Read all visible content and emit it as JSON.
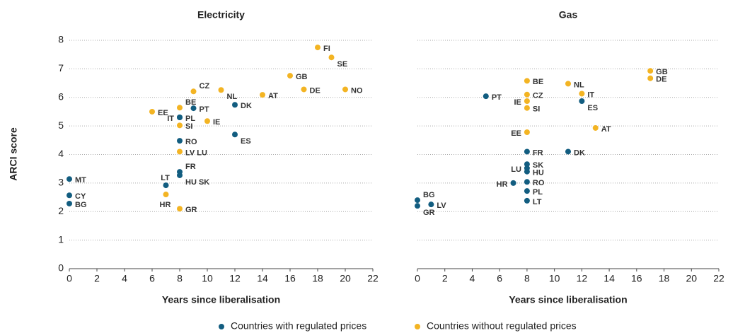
{
  "y_label": "ARCI score",
  "legend": [
    {
      "name": "Countries with regulated prices",
      "color": "#125d80"
    },
    {
      "name": "Countries without regulated prices",
      "color": "#f3b423"
    }
  ],
  "chart_data": [
    {
      "type": "scatter",
      "title": "Electricity",
      "x_label": "Years since liberalisation",
      "xlim": [
        0,
        22
      ],
      "xticks": [
        0,
        2,
        4,
        6,
        8,
        10,
        12,
        14,
        16,
        18,
        20,
        22
      ],
      "ylim": [
        0,
        8
      ],
      "yticks": [
        0,
        1,
        2,
        3,
        4,
        5,
        6,
        7,
        8
      ],
      "ytick_labels": true,
      "grid": true,
      "series": [
        {
          "color": "#125d80",
          "labels": [
            "MT",
            "CY",
            "BG",
            "LT",
            "FR",
            "HU SK",
            "RO",
            "IT",
            "PL",
            "PT",
            "DK",
            "ES"
          ],
          "x": [
            0,
            0,
            0,
            7,
            8,
            8,
            8,
            8,
            8,
            9,
            12,
            12
          ],
          "values": [
            3.14,
            2.57,
            2.28,
            2.92,
            3.39,
            3.27,
            4.48,
            5.3,
            5.3,
            5.62,
            5.74,
            4.7
          ]
        },
        {
          "color": "#f3b423",
          "labels": [
            "EE",
            "BE",
            "SI",
            "CZ",
            "NL",
            "AT",
            "IE",
            "GB",
            "DE",
            "NO",
            "FI",
            "SE",
            "HR",
            "GR",
            "LV LU"
          ],
          "x": [
            6,
            8,
            8,
            9,
            11,
            14,
            10,
            16,
            17,
            20,
            18,
            19,
            7,
            8,
            8
          ],
          "values": [
            5.5,
            5.64,
            5.02,
            6.21,
            6.26,
            6.09,
            5.17,
            6.76,
            6.28,
            6.28,
            7.75,
            7.4,
            2.6,
            2.1,
            4.1
          ]
        }
      ]
    },
    {
      "type": "scatter",
      "title": "Gas",
      "x_label": "Years since liberalisation",
      "xlim": [
        0,
        22
      ],
      "xticks": [
        0,
        2,
        4,
        6,
        8,
        10,
        12,
        14,
        16,
        18,
        20,
        22
      ],
      "ylim": [
        0,
        8
      ],
      "yticks": [
        0,
        1,
        2,
        3,
        4,
        5,
        6,
        7,
        8
      ],
      "ytick_labels": false,
      "grid": true,
      "series": [
        {
          "color": "#125d80",
          "labels": [
            "PT",
            "FR",
            "DK",
            "ES",
            "SK",
            "LU",
            "HU",
            "RO",
            "HR",
            "PL",
            "LT",
            "BG",
            "GR",
            "LV"
          ],
          "x": [
            5,
            8,
            11,
            12,
            8,
            8,
            8,
            8,
            7,
            8,
            8,
            0,
            0,
            1
          ],
          "values": [
            6.04,
            4.1,
            4.1,
            5.87,
            3.66,
            3.52,
            3.4,
            3.04,
            3.0,
            2.72,
            2.38,
            2.4,
            2.2,
            2.25
          ]
        },
        {
          "color": "#f3b423",
          "labels": [
            "BE",
            "CZ",
            "IE",
            "SI",
            "NL",
            "IT",
            "EE",
            "AT",
            "GB",
            "DE"
          ],
          "x": [
            8,
            8,
            8,
            8,
            11,
            12,
            8,
            13,
            17,
            17
          ],
          "values": [
            6.58,
            6.1,
            5.87,
            5.63,
            6.48,
            6.13,
            4.78,
            4.93,
            6.93,
            6.67
          ]
        }
      ]
    }
  ]
}
